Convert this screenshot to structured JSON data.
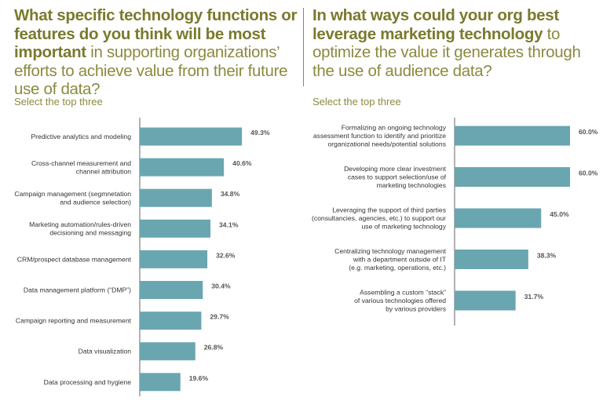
{
  "left": {
    "headline_bold_1": "What specific technology functions or features do you think will be most important",
    "headline_rest_1": " in supporting organizations’ efforts to achieve value from their future use of data?",
    "select_note": "Select the top three"
  },
  "right": {
    "headline_bold_1": "In what ways could your org best leverage marketing technology",
    "headline_rest_1": " to optimize the value it generates through the use of audience data?",
    "select_note": "Select the top three"
  },
  "colors": {
    "bar": "#6aa6b0",
    "headline": "#8b8a3f",
    "axis": "#666666"
  },
  "chart_data": [
    {
      "type": "bar",
      "orientation": "horizontal",
      "categories": [
        [
          "Predictive analytics and modeling"
        ],
        [
          "Cross-channel measurement and",
          "channel attribution"
        ],
        [
          "Campaign management (segmnetation",
          "and audience selection)"
        ],
        [
          "Marketing automation/rules-driven",
          "decisioning and messaging"
        ],
        [
          "CRM/prospect database management"
        ],
        [
          "Data management platform (“DMP”)"
        ],
        [
          "Campaign reporting and measurement"
        ],
        [
          "Data visualization"
        ],
        [
          "Data processing and hygiene"
        ]
      ],
      "values": [
        49.3,
        40.6,
        34.8,
        34.1,
        32.6,
        30.4,
        29.7,
        26.8,
        19.6
      ],
      "value_labels": [
        "49.3%",
        "40.6%",
        "34.8%",
        "34.1%",
        "32.6%",
        "30.4%",
        "29.7%",
        "26.8%",
        "19.6%"
      ],
      "xlim": [
        0,
        100
      ]
    },
    {
      "type": "bar",
      "orientation": "horizontal",
      "categories": [
        [
          "Formalizing an ongoing technology",
          "assessment function to identify and prioritize",
          "organizational needs/potential solutions"
        ],
        [
          "Developing more clear investment",
          "cases to support selection/use of",
          "marketing technologies"
        ],
        [
          "Leveraging the support of third parties",
          "(consultancies, agencies, etc.) to support our",
          "use of marketing technology"
        ],
        [
          "Centralizing technology management",
          "with a department outside of IT",
          "(e.g. marketing, operations, etc.)"
        ],
        [
          "Assembling a custom “stack”",
          "of various technologies offered",
          "by various providers"
        ]
      ],
      "values": [
        60.0,
        60.0,
        45.0,
        38.3,
        31.7
      ],
      "value_labels": [
        "60.0%",
        "60.0%",
        "45.0%",
        "38.3%",
        "31.7%"
      ],
      "xlim": [
        0,
        100
      ]
    }
  ]
}
